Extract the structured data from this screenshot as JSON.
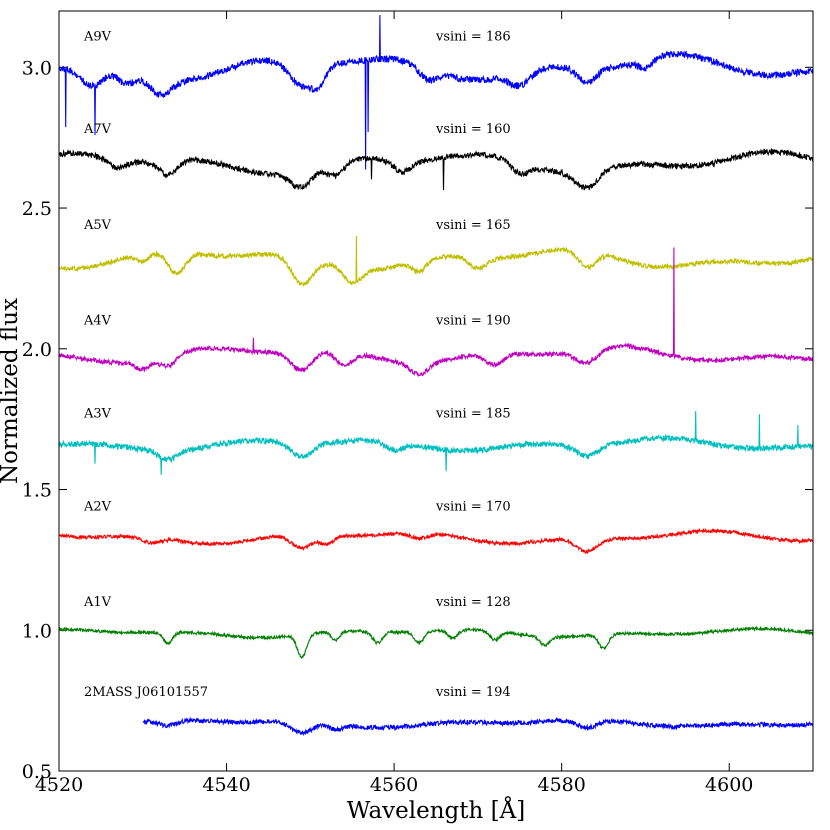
{
  "chart_data": {
    "type": "line",
    "title": "",
    "xlabel": "Wavelength [Å]",
    "ylabel": "Normalized flux",
    "xlim": [
      4520,
      4610
    ],
    "ylim": [
      0.5,
      3.2
    ],
    "xticks": [
      4520,
      4540,
      4560,
      4580,
      4600
    ],
    "yticks": [
      0.5,
      1.0,
      1.5,
      2.0,
      2.5,
      3.0
    ],
    "xtick_labels": [
      "4520",
      "4540",
      "4560",
      "4580",
      "4600"
    ],
    "ytick_labels": [
      "0.5",
      "1.0",
      "1.5",
      "2.0",
      "2.5",
      "3.0"
    ],
    "grid": false,
    "series": [
      {
        "name": "A9V",
        "vsini": "vsini = 186",
        "color": "#0000ff",
        "base": 3.0,
        "label_y": 3.11,
        "x_start": 4520,
        "x_end": 4610,
        "amp": 0.06,
        "noise": 0.012,
        "seed": 9,
        "features": [
          [
            4524,
            0.07,
            2.0
          ],
          [
            4528,
            0.05,
            1.5
          ],
          [
            4532,
            0.06,
            1.8
          ],
          [
            4549,
            0.08,
            2.2
          ],
          [
            4551,
            0.05,
            1.2
          ],
          [
            4564,
            0.04,
            1.5
          ],
          [
            4575,
            0.05,
            1.8
          ],
          [
            4583,
            0.05,
            1.5
          ],
          [
            4590,
            0.03,
            1.2
          ]
        ],
        "spikes": [
          [
            4520.8,
            -0.21
          ],
          [
            4524.3,
            -0.17
          ],
          [
            4556.6,
            -0.4
          ],
          [
            4556.9,
            -0.25
          ],
          [
            4558.3,
            0.15
          ]
        ]
      },
      {
        "name": "A7V",
        "vsini": "vsini = 160",
        "color": "#000000",
        "base": 2.66,
        "label_y": 2.78,
        "x_start": 4520,
        "x_end": 4610,
        "amp": 0.05,
        "noise": 0.01,
        "seed": 7,
        "features": [
          [
            4527,
            0.03,
            1.5
          ],
          [
            4533,
            0.05,
            1.5
          ],
          [
            4549,
            0.06,
            1.8
          ],
          [
            4553,
            0.05,
            1.5
          ],
          [
            4561,
            0.04,
            1.5
          ],
          [
            4575,
            0.04,
            1.5
          ],
          [
            4583,
            0.06,
            1.8
          ]
        ],
        "spikes": [
          [
            4557.3,
            -0.08
          ],
          [
            4565.9,
            -0.12
          ]
        ]
      },
      {
        "name": "A5V",
        "vsini": "vsini = 165",
        "color": "#bfbf00",
        "base": 2.32,
        "label_y": 2.44,
        "x_start": 4520,
        "x_end": 4610,
        "amp": 0.05,
        "noise": 0.008,
        "seed": 5,
        "features": [
          [
            4530,
            0.03,
            1.2
          ],
          [
            4534,
            0.08,
            1.5
          ],
          [
            4549,
            0.1,
            1.8
          ],
          [
            4555,
            0.05,
            1.5
          ],
          [
            4563,
            0.04,
            1.2
          ],
          [
            4570,
            0.04,
            1.5
          ],
          [
            4583,
            0.06,
            1.5
          ]
        ],
        "spikes": [
          [
            4555.5,
            0.16
          ]
        ]
      },
      {
        "name": "A4V",
        "vsini": "vsini = 190",
        "color": "#bf00bf",
        "base": 1.98,
        "label_y": 2.1,
        "x_start": 4520,
        "x_end": 4610,
        "amp": 0.04,
        "noise": 0.008,
        "seed": 4,
        "features": [
          [
            4530,
            0.03,
            1.2
          ],
          [
            4533,
            0.04,
            1.5
          ],
          [
            4549,
            0.07,
            1.8
          ],
          [
            4554,
            0.05,
            1.5
          ],
          [
            4563,
            0.04,
            1.5
          ],
          [
            4572,
            0.04,
            1.5
          ],
          [
            4583,
            0.05,
            1.8
          ]
        ],
        "spikes": [
          [
            4593.4,
            0.38
          ],
          [
            4543.2,
            0.05
          ]
        ]
      },
      {
        "name": "A3V",
        "vsini": "vsini = 185",
        "color": "#00bfbf",
        "base": 1.66,
        "label_y": 1.77,
        "x_start": 4520,
        "x_end": 4610,
        "amp": 0.03,
        "noise": 0.01,
        "seed": 3,
        "features": [
          [
            4533,
            0.03,
            1.5
          ],
          [
            4549,
            0.05,
            1.8
          ],
          [
            4560,
            0.03,
            1.5
          ],
          [
            4583,
            0.04,
            1.8
          ]
        ],
        "spikes": [
          [
            4524.3,
            -0.06
          ],
          [
            4532.2,
            -0.06
          ],
          [
            4566.2,
            -0.07
          ],
          [
            4596,
            0.1
          ],
          [
            4603.6,
            0.12
          ],
          [
            4608.2,
            0.08
          ]
        ]
      },
      {
        "name": "A2V",
        "vsini": "vsini = 170",
        "color": "#ff0000",
        "base": 1.33,
        "label_y": 1.44,
        "x_start": 4520,
        "x_end": 4610,
        "amp": 0.03,
        "noise": 0.006,
        "seed": 2,
        "features": [
          [
            4531,
            0.02,
            1.5
          ],
          [
            4549,
            0.05,
            1.8
          ],
          [
            4552,
            0.03,
            1.2
          ],
          [
            4563,
            0.02,
            1.5
          ],
          [
            4583,
            0.05,
            1.8
          ]
        ],
        "spikes": []
      },
      {
        "name": "A1V",
        "vsini": "vsini = 128",
        "color": "#007f00",
        "base": 0.99,
        "label_y": 1.1,
        "x_start": 4520,
        "x_end": 4610,
        "amp": 0.02,
        "noise": 0.005,
        "seed": 1,
        "features": [
          [
            4533,
            0.04,
            0.8
          ],
          [
            4549,
            0.08,
            0.8
          ],
          [
            4553,
            0.03,
            0.7
          ],
          [
            4558,
            0.04,
            0.8
          ],
          [
            4563,
            0.04,
            0.8
          ],
          [
            4567,
            0.03,
            0.8
          ],
          [
            4572,
            0.03,
            0.8
          ],
          [
            4578,
            0.03,
            0.8
          ],
          [
            4585,
            0.05,
            0.8
          ]
        ],
        "spikes": []
      },
      {
        "name": "2MASS J06101557",
        "vsini": "vsini = 194",
        "color": "#0000ff",
        "base": 0.67,
        "label_y": 0.78,
        "x_start": 4530,
        "x_end": 4610,
        "amp": 0.02,
        "noise": 0.008,
        "seed": 11,
        "features": [
          [
            4533,
            0.02,
            1.5
          ],
          [
            4549,
            0.04,
            1.8
          ],
          [
            4553,
            0.02,
            1.2
          ],
          [
            4583,
            0.03,
            1.8
          ]
        ],
        "spikes": []
      }
    ]
  }
}
